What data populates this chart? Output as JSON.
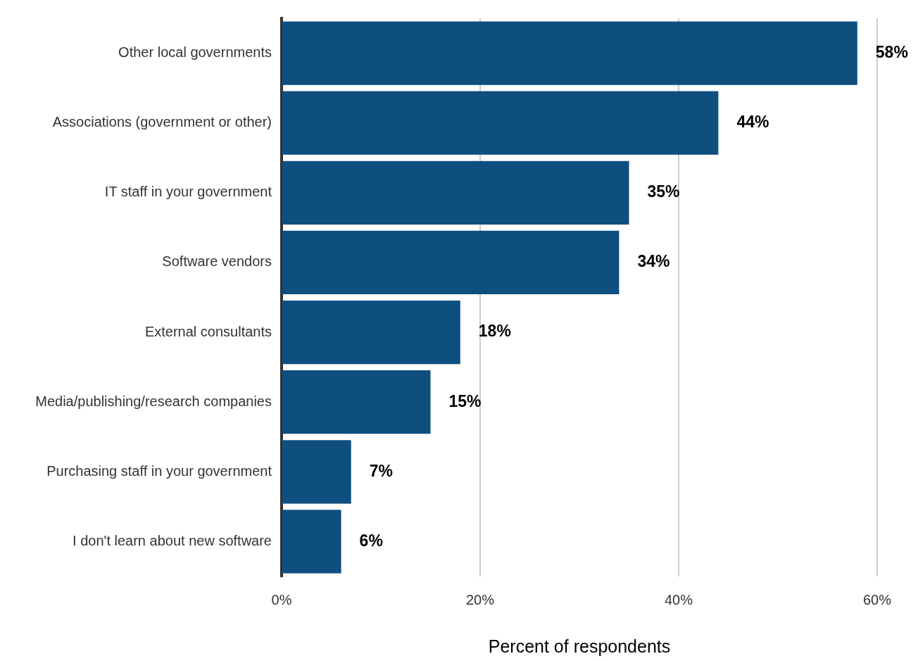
{
  "chart_data": {
    "type": "bar",
    "orientation": "horizontal",
    "xlabel": "Percent of respondents",
    "categories": [
      "Other local governments",
      "Associations (government or other)",
      "IT staff in your government",
      "Software vendors",
      "External consultants",
      "Media/publishing/research companies",
      "Purchasing staff in your government",
      "I don't learn about new software"
    ],
    "values": [
      58,
      44,
      35,
      34,
      18,
      15,
      7,
      6
    ],
    "value_labels": [
      "58%",
      "44%",
      "35%",
      "34%",
      "18%",
      "15%",
      "7%",
      "6%"
    ],
    "color": "#0e4f80",
    "xlim": [
      0,
      60
    ],
    "xticks": [
      {
        "value": 0,
        "label": "0%"
      },
      {
        "value": 20,
        "label": "20%"
      },
      {
        "value": 40,
        "label": "40%"
      },
      {
        "value": 60,
        "label": "60%"
      }
    ],
    "grid": "x",
    "legend": false
  }
}
